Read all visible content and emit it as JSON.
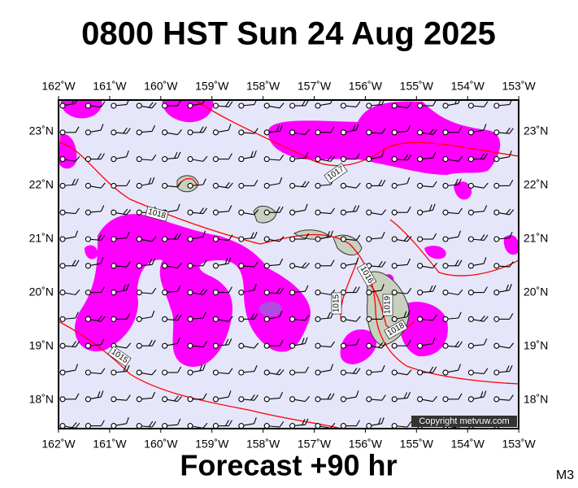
{
  "header": {
    "title": "0800 HST Sun 24 Aug 2025"
  },
  "map": {
    "longitude_labels": [
      "162˚W",
      "161˚W",
      "160˚W",
      "159˚W",
      "158˚W",
      "157˚W",
      "156˚W",
      "155˚W",
      "154˚W",
      "153˚W"
    ],
    "latitude_labels": [
      "23˚N",
      "22˚N",
      "21˚N",
      "20˚N",
      "19˚N",
      "18˚N"
    ],
    "isobar_labels": [
      "1017",
      "1018",
      "1015",
      "1016",
      "1015",
      "1019",
      "1018"
    ],
    "copyright": "Copyright metvuw.com"
  },
  "footer": {
    "forecast": "Forecast +90 hr",
    "model": "M3"
  }
}
